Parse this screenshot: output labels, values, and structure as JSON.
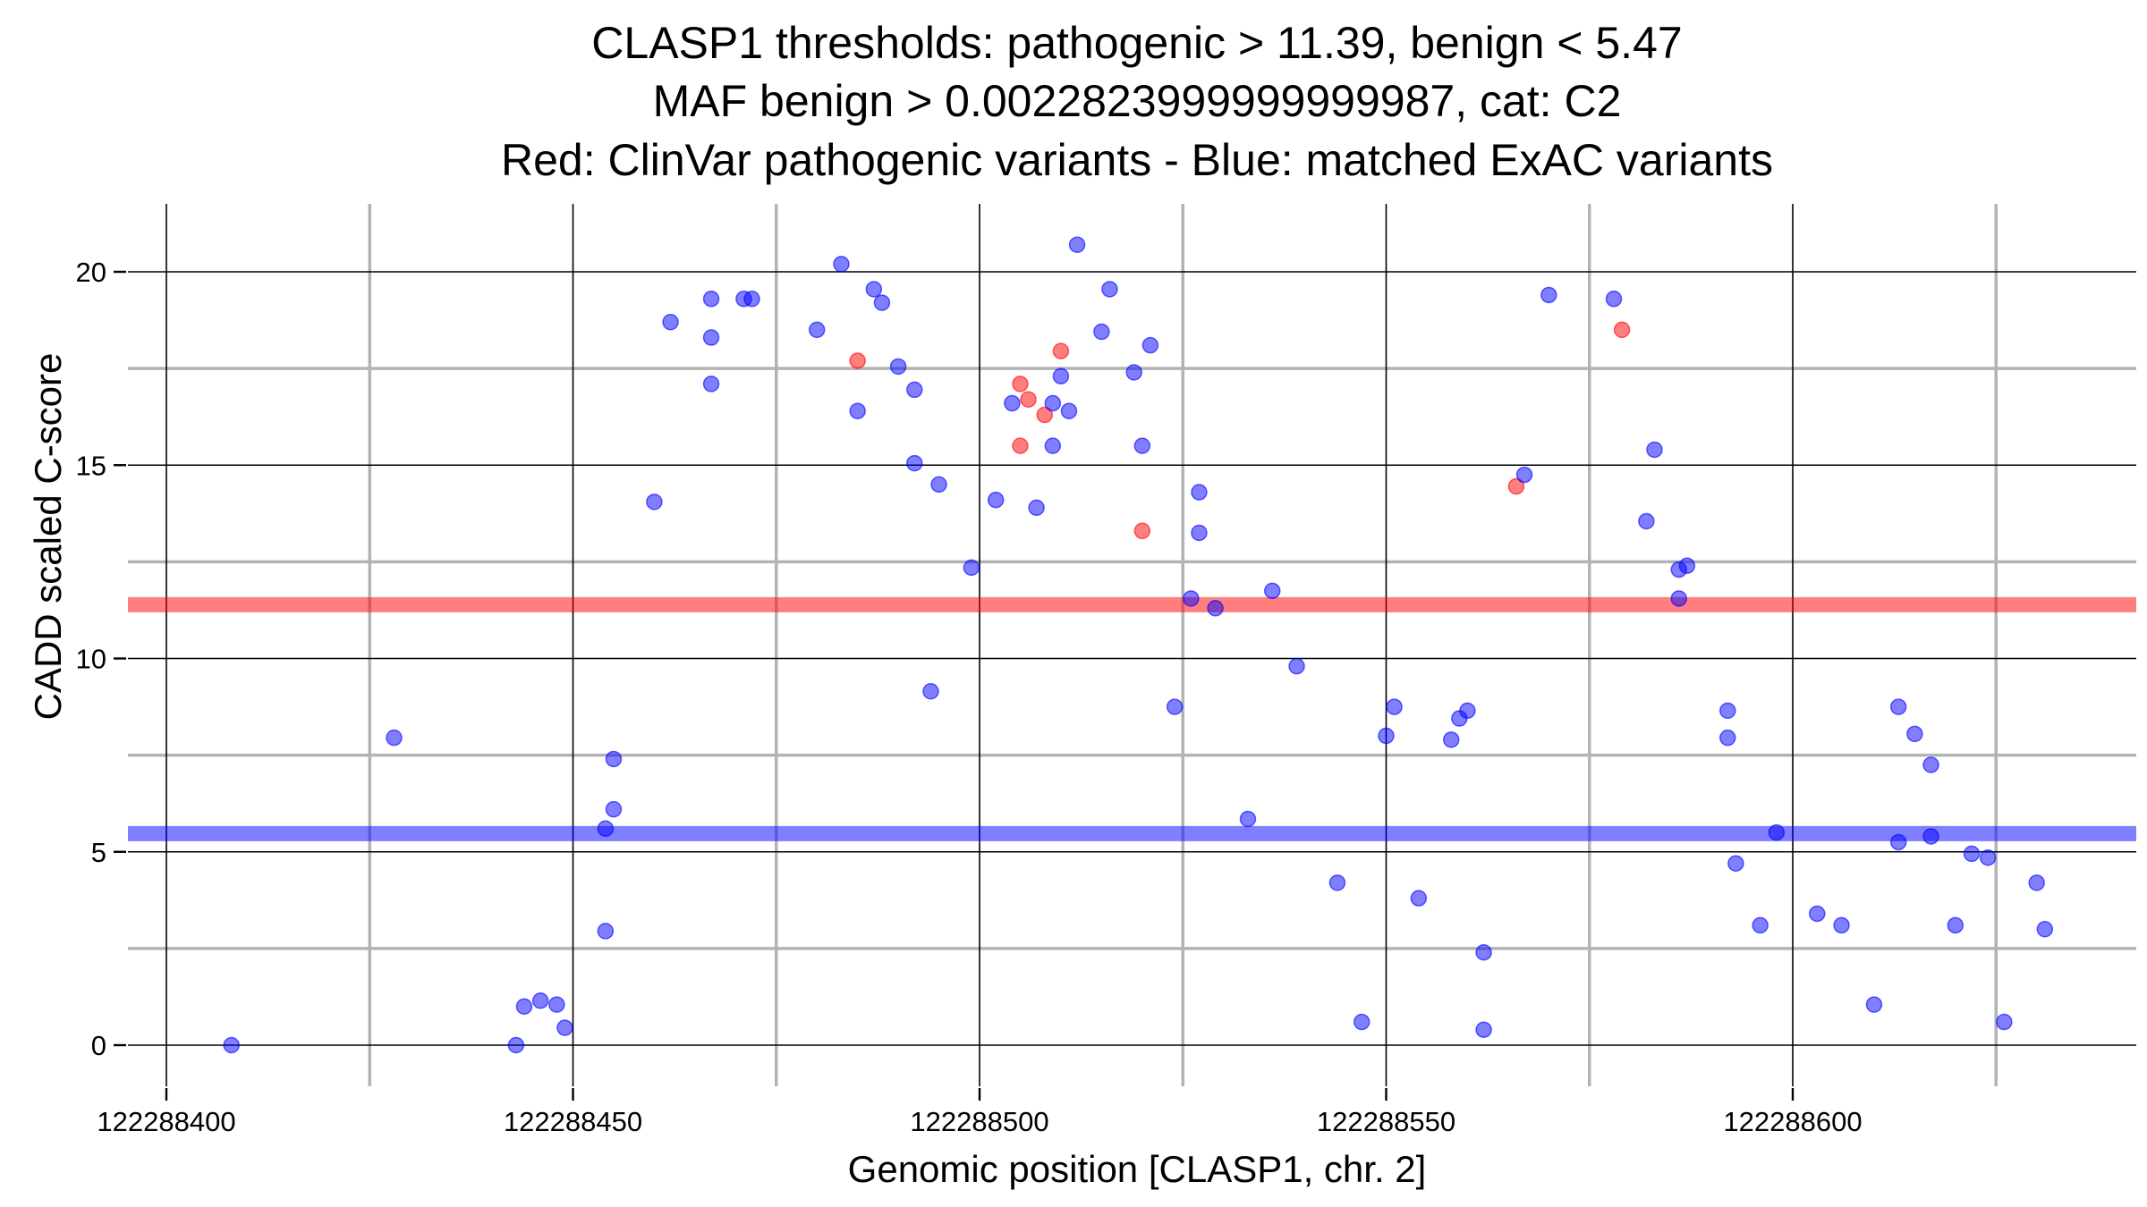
{
  "chart_data": {
    "type": "scatter",
    "title": [
      "CLASP1 thresholds: pathogenic > 11.39, benign < 5.47",
      "MAF benign > 0.0022823999999999987, cat: C2",
      "Red: ClinVar pathogenic variants - Blue: matched ExAC variants"
    ],
    "xlabel": "Genomic position [CLASP1, chr. 2]",
    "ylabel": "CADD scaled C-score",
    "xlim": [
      122288399,
      122288631
    ],
    "ylim": [
      -1,
      22
    ],
    "x_ticks": [
      122288400,
      122288450,
      122288500,
      122288550,
      122288600
    ],
    "x_tick_labels": [
      "122288400",
      "122288450",
      "122288500",
      "122288550",
      "122288600"
    ],
    "x_minor_grid": [
      122288425,
      122288475,
      122288525,
      122288575,
      122288625
    ],
    "y_ticks": [
      0,
      5,
      10,
      15,
      20
    ],
    "y_tick_labels": [
      "0",
      "5",
      "10",
      "15",
      "20"
    ],
    "y_minor_grid": [
      2.5,
      7.5,
      12.5,
      17.5
    ],
    "thresholds": [
      {
        "name": "pathogenic",
        "value": 11.39,
        "color": "#ff0000"
      },
      {
        "name": "benign",
        "value": 5.47,
        "color": "#0000ff"
      }
    ],
    "colors": {
      "pathogenic": "#ff0000",
      "benign": "#0000ff",
      "major_grid": "#000000",
      "minor_grid": "#b3b3b3"
    },
    "series": [
      {
        "name": "ClinVar pathogenic variants",
        "color": "#ff0000",
        "points": [
          [
            122288485,
            17.7
          ],
          [
            122288505,
            17.1
          ],
          [
            122288506,
            16.7
          ],
          [
            122288508,
            16.3
          ],
          [
            122288510,
            17.95
          ],
          [
            122288505,
            15.5
          ],
          [
            122288520,
            13.3
          ],
          [
            122288566,
            14.45
          ],
          [
            122288579,
            18.5
          ]
        ]
      },
      {
        "name": "matched ExAC variants",
        "color": "#0000ff",
        "points": [
          [
            122288408,
            0.0
          ],
          [
            122288428,
            7.95
          ],
          [
            122288443,
            0.0
          ],
          [
            122288444,
            1.0
          ],
          [
            122288446,
            1.15
          ],
          [
            122288448,
            1.05
          ],
          [
            122288449,
            0.45
          ],
          [
            122288454,
            5.6
          ],
          [
            122288454,
            2.95
          ],
          [
            122288455,
            6.1
          ],
          [
            122288455,
            7.4
          ],
          [
            122288460,
            14.05
          ],
          [
            122288462,
            18.7
          ],
          [
            122288467,
            19.3
          ],
          [
            122288467,
            18.3
          ],
          [
            122288467,
            17.1
          ],
          [
            122288471,
            19.3
          ],
          [
            122288472,
            19.3
          ],
          [
            122288480,
            18.5
          ],
          [
            122288483,
            20.2
          ],
          [
            122288485,
            16.4
          ],
          [
            122288487,
            19.55
          ],
          [
            122288488,
            19.2
          ],
          [
            122288490,
            17.55
          ],
          [
            122288492,
            16.95
          ],
          [
            122288492,
            15.05
          ],
          [
            122288494,
            9.15
          ],
          [
            122288495,
            14.5
          ],
          [
            122288499,
            12.35
          ],
          [
            122288502,
            14.1
          ],
          [
            122288504,
            16.6
          ],
          [
            122288507,
            13.9
          ],
          [
            122288509,
            16.6
          ],
          [
            122288509,
            15.5
          ],
          [
            122288510,
            17.3
          ],
          [
            122288511,
            16.4
          ],
          [
            122288512,
            20.7
          ],
          [
            122288515,
            18.45
          ],
          [
            122288516,
            19.55
          ],
          [
            122288519,
            17.4
          ],
          [
            122288520,
            15.5
          ],
          [
            122288521,
            18.1
          ],
          [
            122288524,
            8.75
          ],
          [
            122288526,
            11.55
          ],
          [
            122288527,
            14.3
          ],
          [
            122288527,
            13.25
          ],
          [
            122288529,
            11.3
          ],
          [
            122288533,
            5.85
          ],
          [
            122288536,
            11.75
          ],
          [
            122288539,
            9.8
          ],
          [
            122288544,
            4.2
          ],
          [
            122288547,
            0.6
          ],
          [
            122288550,
            8.0
          ],
          [
            122288551,
            8.75
          ],
          [
            122288554,
            3.8
          ],
          [
            122288558,
            7.9
          ],
          [
            122288559,
            8.45
          ],
          [
            122288560,
            8.65
          ],
          [
            122288562,
            2.4
          ],
          [
            122288562,
            0.4
          ],
          [
            122288567,
            14.75
          ],
          [
            122288570,
            19.4
          ],
          [
            122288578,
            19.3
          ],
          [
            122288582,
            13.55
          ],
          [
            122288583,
            15.4
          ],
          [
            122288586,
            12.3
          ],
          [
            122288586,
            11.55
          ],
          [
            122288587,
            12.4
          ],
          [
            122288592,
            8.65
          ],
          [
            122288592,
            7.95
          ],
          [
            122288593,
            4.7
          ],
          [
            122288596,
            3.1
          ],
          [
            122288598,
            5.5
          ],
          [
            122288603,
            3.4
          ],
          [
            122288606,
            3.1
          ],
          [
            122288610,
            1.05
          ],
          [
            122288613,
            8.75
          ],
          [
            122288613,
            5.25
          ],
          [
            122288615,
            8.05
          ],
          [
            122288617,
            7.25
          ],
          [
            122288617,
            5.4
          ],
          [
            122288620,
            3.1
          ],
          [
            122288622,
            4.95
          ],
          [
            122288624,
            4.85
          ],
          [
            122288626,
            0.6
          ],
          [
            122288630,
            4.2
          ],
          [
            122288631,
            3.0
          ]
        ]
      }
    ]
  }
}
